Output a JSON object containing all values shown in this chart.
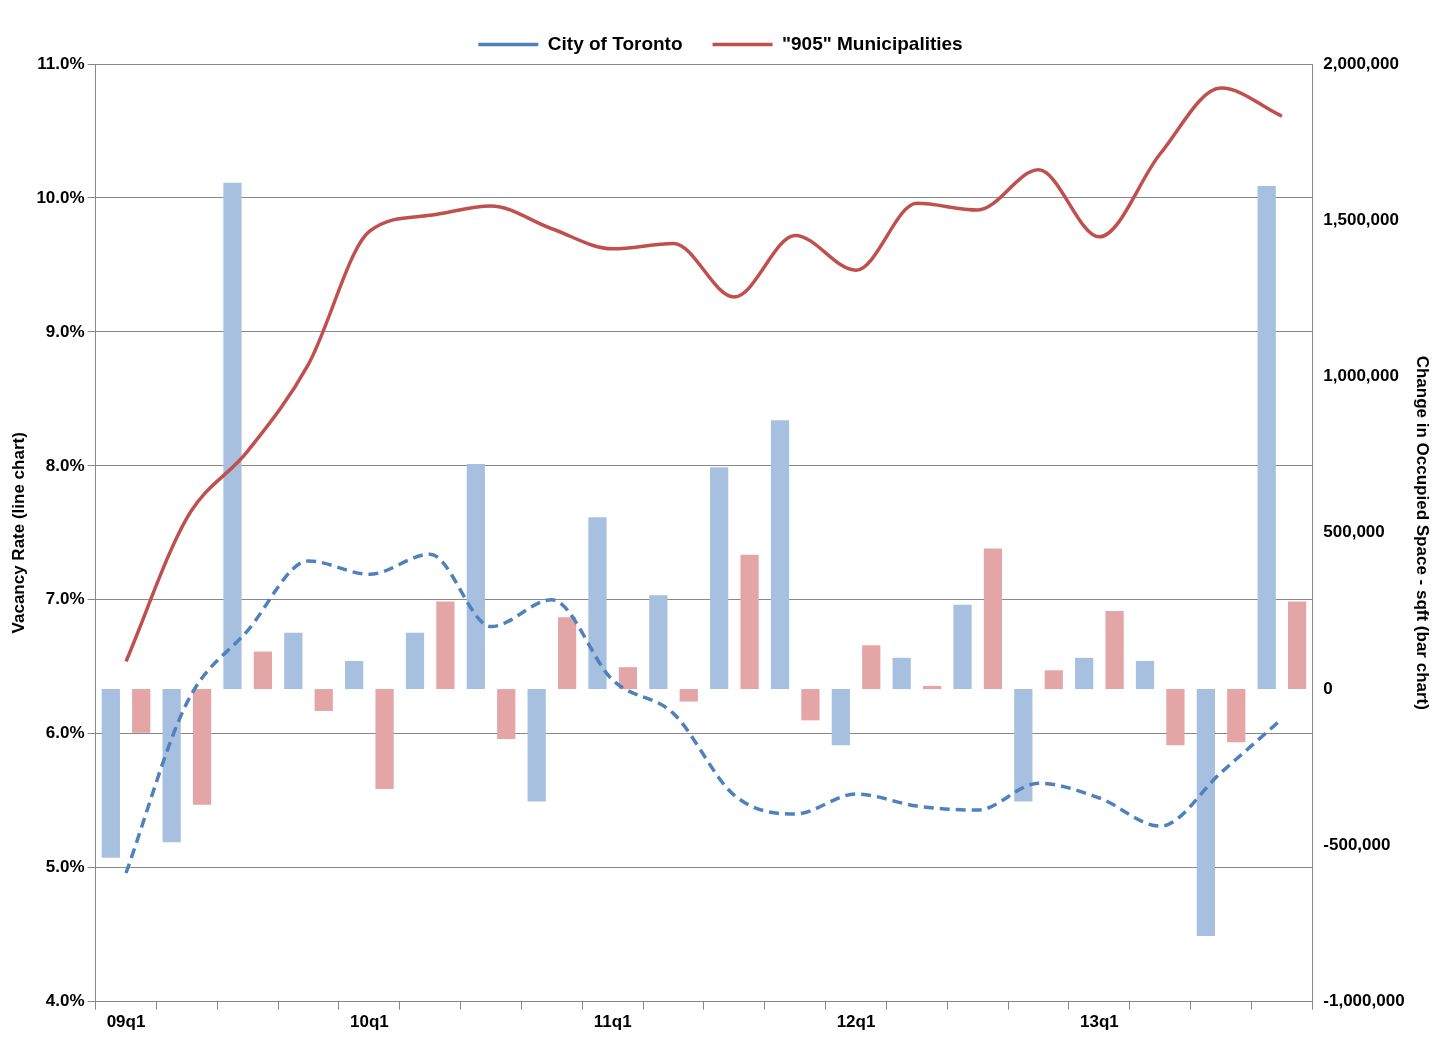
{
  "chart_data": {
    "type": "bar",
    "ylabel": "Vacancy Rate (line chart)",
    "y2label": "Change in Occupied Space - sqft (bar chart)",
    "categories": [
      "09q1",
      null,
      null,
      null,
      "10q1",
      null,
      null,
      null,
      "11q1",
      null,
      null,
      null,
      "12q1",
      null,
      null,
      null,
      "13q1",
      null,
      null,
      null
    ],
    "series": [
      {
        "axis": "y2",
        "color": "#a7c0e0",
        "values": [
          -540000,
          -490000,
          1620000,
          180000,
          90000,
          180000,
          720000,
          -360000,
          550000,
          300000,
          710000,
          860000,
          -180000,
          100000,
          270000,
          -360000,
          100000,
          90000,
          -790000,
          1610000
        ]
      },
      {
        "axis": "y2",
        "color": "#e3a5a5",
        "values": [
          -140000,
          -370000,
          120000,
          -70000,
          -320000,
          280000,
          -160000,
          230000,
          70000,
          -40000,
          430000,
          -100000,
          140000,
          10000,
          450000,
          60000,
          250000,
          -180000,
          -170000,
          280000
        ]
      },
      {
        "type": "line",
        "name": "City of Toronto",
        "color": "#4f81bd",
        "line_style": "dashed",
        "values": [
          4.96,
          6.23,
          6.77,
          7.29,
          7.19,
          7.34,
          6.8,
          7.0,
          6.4,
          6.15,
          5.54,
          5.4,
          5.55,
          5.46,
          5.43,
          5.63,
          5.52,
          5.31,
          5.71,
          6.11
        ]
      },
      {
        "type": "line",
        "name": "\"905\" Municipalities",
        "color": "#c0504d",
        "line_style": "solid",
        "values": [
          6.54,
          7.61,
          8.11,
          8.76,
          9.75,
          9.87,
          9.94,
          9.77,
          9.62,
          9.66,
          9.26,
          9.72,
          9.46,
          9.96,
          9.91,
          10.21,
          9.71,
          10.33,
          10.82,
          10.61
        ]
      }
    ],
    "ylim": [
      4,
      11
    ],
    "yticks": [
      {
        "value": 4,
        "label": "4.0%"
      },
      {
        "value": 5,
        "label": "5.0%"
      },
      {
        "value": 6,
        "label": "6.0%"
      },
      {
        "value": 7,
        "label": "7.0%"
      },
      {
        "value": 8,
        "label": "8.0%"
      },
      {
        "value": 9,
        "label": "9.0%"
      },
      {
        "value": 10,
        "label": "10.0%"
      },
      {
        "value": 11,
        "label": "11.0%"
      }
    ],
    "y2lim": [
      -1000000,
      2000000
    ],
    "y2ticks": [
      {
        "value": -1000000,
        "label": "-1,000,000"
      },
      {
        "value": -500000,
        "label": "-500,000"
      },
      0,
      {
        "value": 500000,
        "label": "500,000"
      },
      {
        "value": 1000000,
        "label": "1,000,000"
      },
      {
        "value": 1500000,
        "label": "1,500,000"
      },
      {
        "value": 2000000,
        "label": "2,000,000"
      }
    ],
    "grid": "y",
    "legend": "top",
    "marker": "none"
  }
}
